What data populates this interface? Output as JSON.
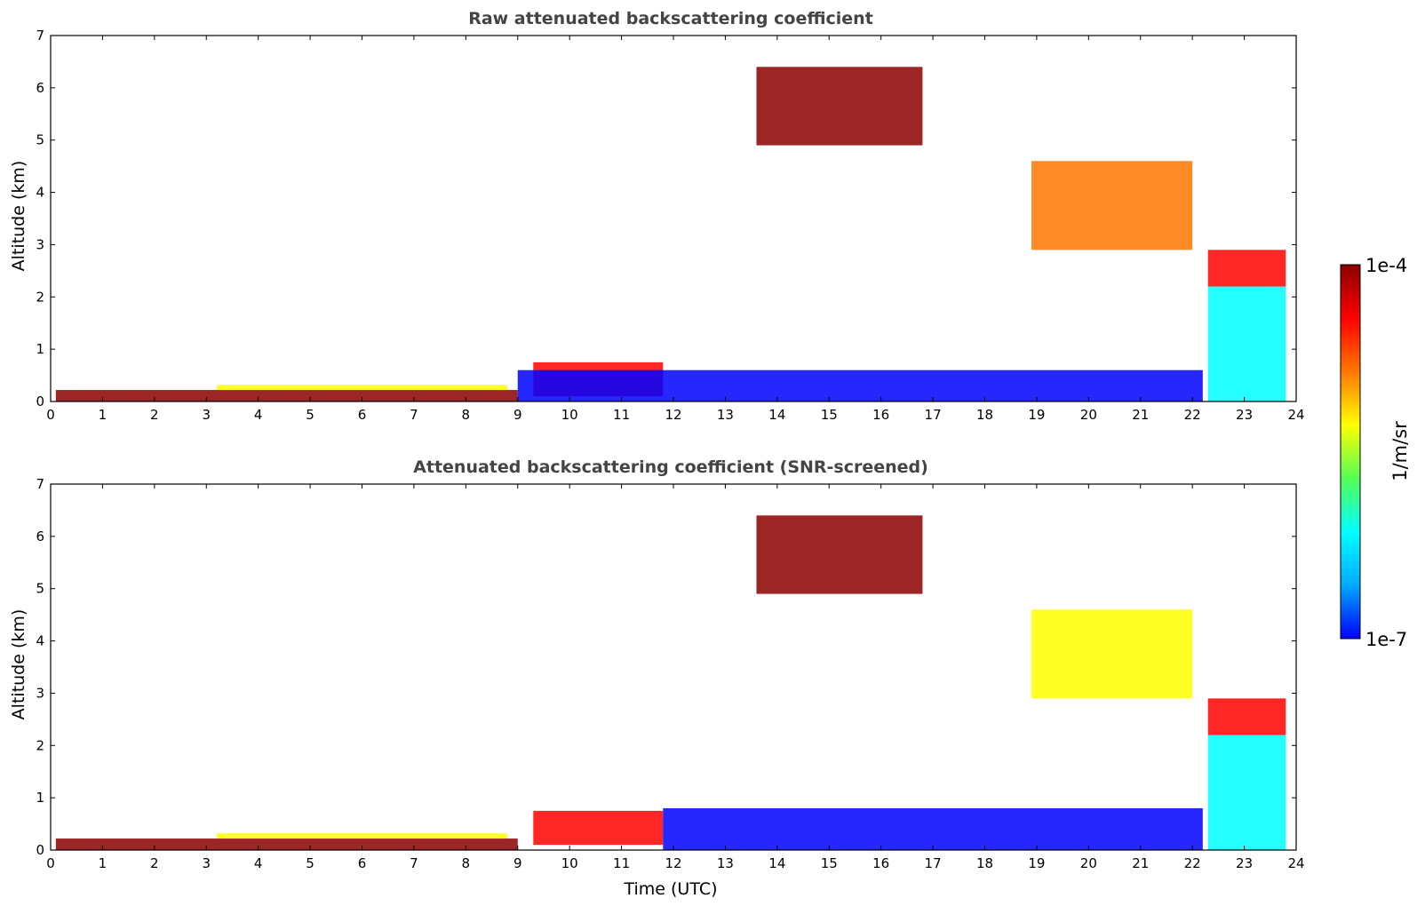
{
  "chart_data": {
    "type": "heatmap",
    "colormap": [
      "#0000ff",
      "#00aaff",
      "#00ffff",
      "#55ff55",
      "#ffff00",
      "#ff7700",
      "#ff0000",
      "#8b0000"
    ],
    "colorbar": {
      "label": "1/m/sr",
      "max_label": "1e-4",
      "min_label": "1e-7",
      "vmin": 1e-07,
      "vmax": 0.0001,
      "scale": "log"
    },
    "panels": [
      {
        "id": "raw",
        "title": "Raw attenuated backscattering coefficient",
        "ylabel": "Altitude (km)",
        "xlabel": "",
        "xlim": [
          0,
          24
        ],
        "ylim": [
          0,
          7
        ],
        "xticks": [
          "0",
          "1",
          "2",
          "3",
          "4",
          "5",
          "6",
          "7",
          "8",
          "9",
          "10",
          "11",
          "12",
          "13",
          "14",
          "15",
          "16",
          "17",
          "18",
          "19",
          "20",
          "21",
          "22",
          "23",
          "24"
        ],
        "yticks": [
          "0",
          "1",
          "2",
          "3",
          "4",
          "5",
          "6",
          "7"
        ],
        "features": [
          {
            "name": "boundary-layer",
            "t0": 0.1,
            "t1": 9.0,
            "z0": 0.0,
            "z1": 0.22,
            "level": 0.93
          },
          {
            "name": "boundary-layer-top",
            "t0": 3.2,
            "t1": 8.8,
            "z0": 0.22,
            "z1": 0.32,
            "level": 0.55
          },
          {
            "name": "aerosol-plume-10h",
            "t0": 9.3,
            "t1": 11.8,
            "z0": 0.1,
            "z1": 0.75,
            "level": 0.85
          },
          {
            "name": "afternoon-low-layer",
            "t0": 9.0,
            "t1": 22.2,
            "z0": 0.0,
            "z1": 0.6,
            "level": 0.05
          },
          {
            "name": "cirrus-descending",
            "t0": 13.6,
            "t1": 16.8,
            "z0": 4.9,
            "z1": 6.4,
            "level": 0.95
          },
          {
            "name": "mid-level-cloud",
            "t0": 18.9,
            "t1": 22.0,
            "z0": 2.9,
            "z1": 4.6,
            "level": 0.75
          },
          {
            "name": "evening-cloud-base",
            "t0": 22.3,
            "t1": 23.8,
            "z0": 2.2,
            "z1": 2.9,
            "level": 0.9
          },
          {
            "name": "evening-precip",
            "t0": 22.3,
            "t1": 23.8,
            "z0": 0.0,
            "z1": 2.2,
            "level": 0.35
          }
        ]
      },
      {
        "id": "screened",
        "title": "Attenuated backscattering coefficient (SNR-screened)",
        "ylabel": "Altitude (km)",
        "xlabel": "Time (UTC)",
        "xlim": [
          0,
          24
        ],
        "ylim": [
          0,
          7
        ],
        "xticks": [
          "0",
          "1",
          "2",
          "3",
          "4",
          "5",
          "6",
          "7",
          "8",
          "9",
          "10",
          "11",
          "12",
          "13",
          "14",
          "15",
          "16",
          "17",
          "18",
          "19",
          "20",
          "21",
          "22",
          "23",
          "24"
        ],
        "yticks": [
          "0",
          "1",
          "2",
          "3",
          "4",
          "5",
          "6",
          "7"
        ],
        "features": [
          {
            "name": "boundary-layer",
            "t0": 0.1,
            "t1": 9.0,
            "z0": 0.0,
            "z1": 0.22,
            "level": 0.93
          },
          {
            "name": "boundary-layer-top",
            "t0": 3.2,
            "t1": 8.8,
            "z0": 0.22,
            "z1": 0.32,
            "level": 0.55
          },
          {
            "name": "aerosol-plume-10h",
            "t0": 9.3,
            "t1": 11.8,
            "z0": 0.1,
            "z1": 0.75,
            "level": 0.85
          },
          {
            "name": "afternoon-low-layer",
            "t0": 11.8,
            "t1": 22.2,
            "z0": 0.0,
            "z1": 0.8,
            "level": 0.05
          },
          {
            "name": "cirrus-descending",
            "t0": 13.6,
            "t1": 16.8,
            "z0": 4.9,
            "z1": 6.4,
            "level": 0.95
          },
          {
            "name": "mid-level-cloud",
            "t0": 18.9,
            "t1": 22.0,
            "z0": 2.9,
            "z1": 4.6,
            "level": 0.6
          },
          {
            "name": "evening-cloud-base",
            "t0": 22.3,
            "t1": 23.8,
            "z0": 2.2,
            "z1": 2.9,
            "level": 0.9
          },
          {
            "name": "evening-precip",
            "t0": 22.3,
            "t1": 23.8,
            "z0": 0.0,
            "z1": 2.2,
            "level": 0.35
          }
        ]
      }
    ]
  }
}
